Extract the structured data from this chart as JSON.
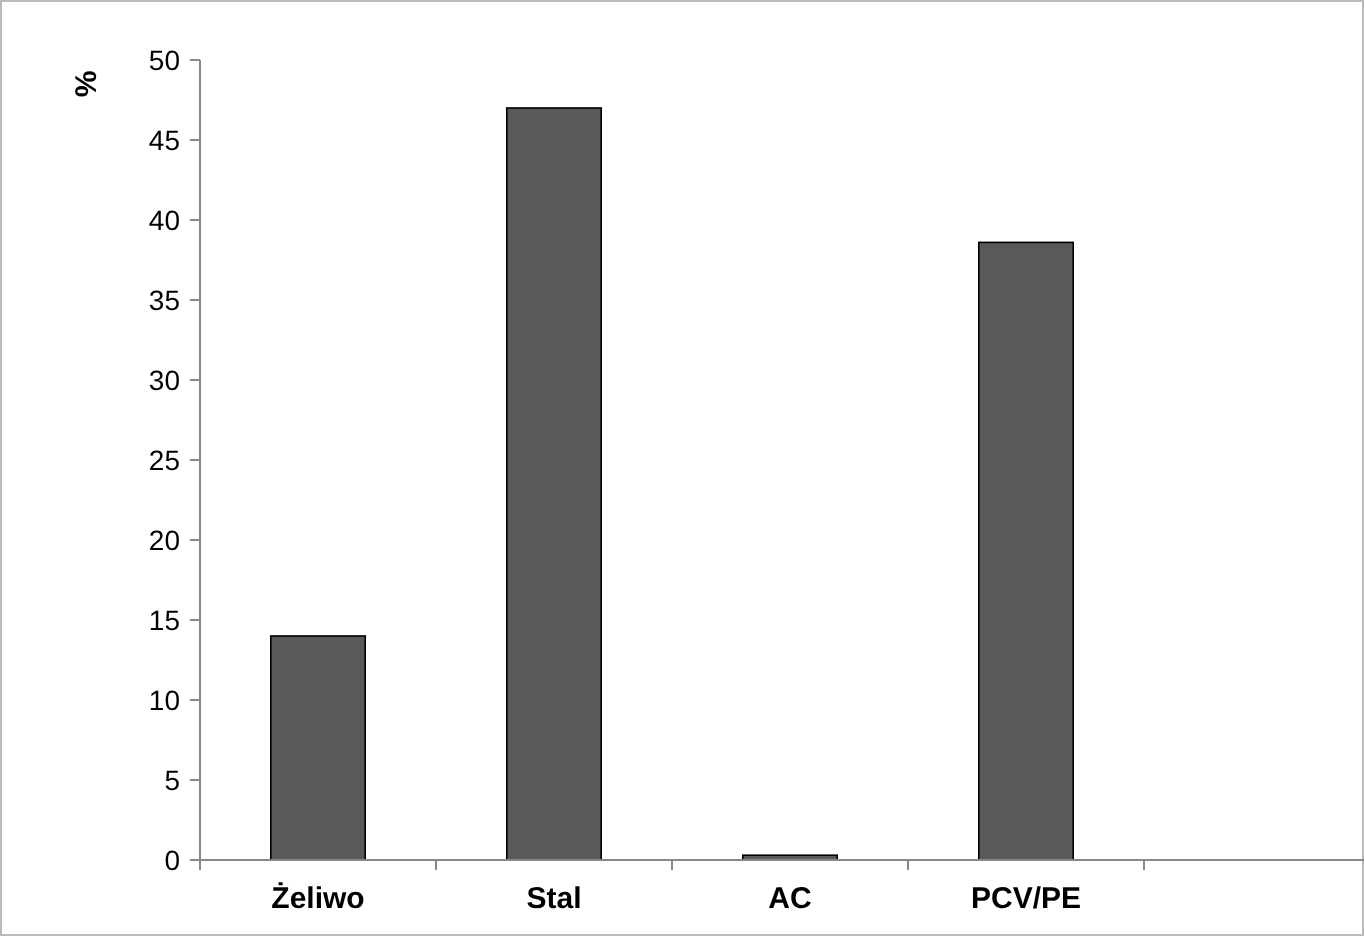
{
  "chart_data": {
    "type": "bar",
    "ylabel": "%",
    "categories": [
      "Żeliwo",
      "Stal",
      "AC",
      "PCV/PE",
      null
    ],
    "values": [
      14,
      47,
      0.3,
      38.6,
      null
    ],
    "color": "#595959",
    "ylim": [
      0,
      50
    ],
    "yticks": [
      0,
      5,
      10,
      15,
      20,
      25,
      30,
      35,
      40,
      45,
      50
    ],
    "grid": false
  }
}
